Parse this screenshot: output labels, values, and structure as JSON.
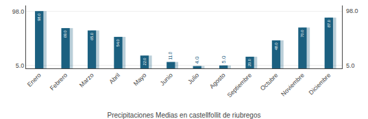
{
  "chart_data": {
    "type": "bar",
    "title": "Precipitaciones Medias en castellfollit de riubregos",
    "categories": [
      "Enero",
      "Febrero",
      "Marzo",
      "Abril",
      "Mayo",
      "Junio",
      "Julio",
      "Agosto",
      "Septiembre",
      "Octubre",
      "Noviembre",
      "Diciembre"
    ],
    "values": [
      98.0,
      69.0,
      65.0,
      54.0,
      22.0,
      11.0,
      4.0,
      5.0,
      20.0,
      48.0,
      70.0,
      87.0
    ],
    "value_labels": [
      "98.0",
      "69.0",
      "65.0",
      "54.0",
      "22.0",
      "11.0",
      "4.0",
      "5.0",
      "20.0",
      "48.0",
      "70.0",
      "87.0"
    ],
    "data_labels": true,
    "color": "#1b6080",
    "ylim": [
      0,
      107.8
    ],
    "yticks": [
      {
        "value": 5.0,
        "label": "5.0"
      },
      {
        "value": 98.0,
        "label": "98.0"
      }
    ],
    "grid": true
  }
}
